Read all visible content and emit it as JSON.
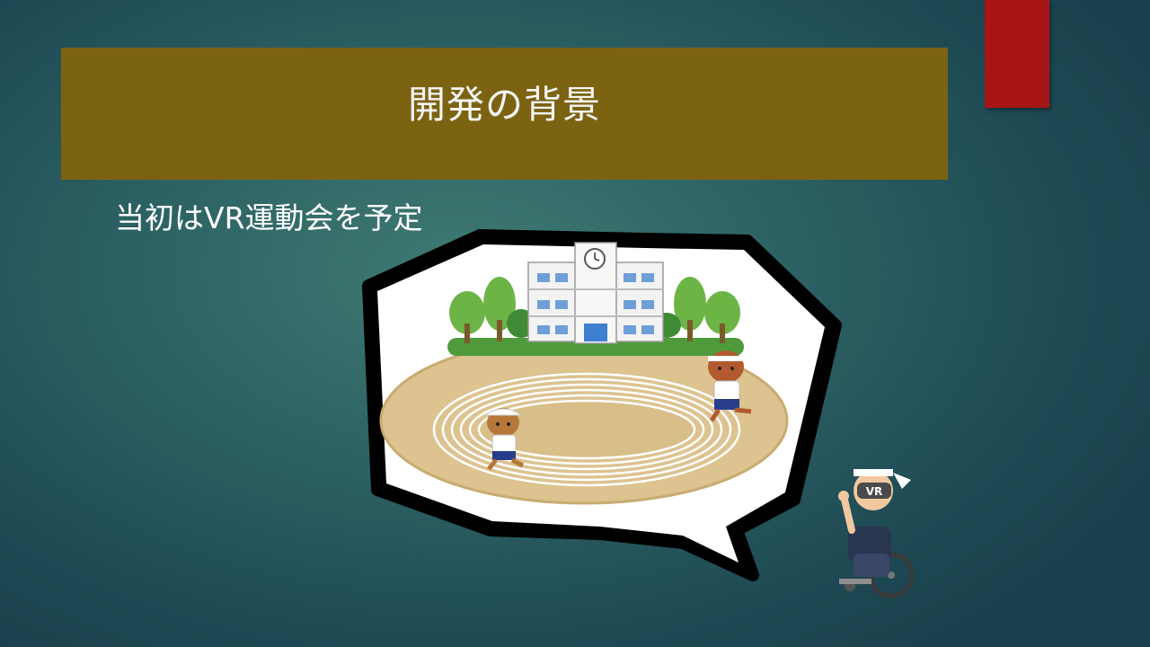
{
  "slide": {
    "title": "開発の背景",
    "subtitle": "当初はVR運動会を予定"
  },
  "illustration": {
    "bubble_icon": "speech-bubble-icon",
    "school_icon": "school-building-icon",
    "track_icon": "running-track-icon",
    "vr_label": "VR"
  },
  "colors": {
    "title_bar": "#7c6312",
    "red_tab": "#a81516",
    "background": "#2d6263"
  }
}
